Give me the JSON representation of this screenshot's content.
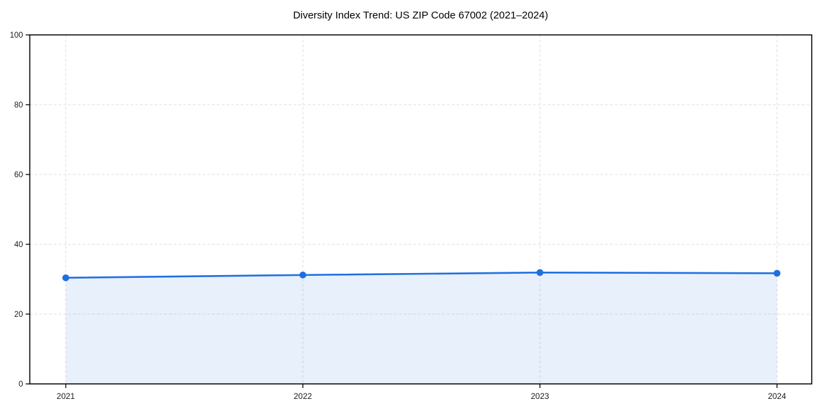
{
  "page": {
    "background": "#ffffff"
  },
  "chart_data": {
    "type": "area",
    "title": "Diversity Index Trend: US ZIP Code 67002 (2021–2024)",
    "x": [
      "2021",
      "2022",
      "2023",
      "2024"
    ],
    "series": [
      {
        "name": "Diversity Index",
        "values": [
          30.4,
          31.2,
          31.9,
          31.7
        ]
      }
    ],
    "xlabel": "",
    "ylabel": "",
    "ylim": [
      0,
      100
    ],
    "yticks": [
      0,
      20,
      40,
      60,
      80,
      100
    ],
    "grid": "dashed, both axes",
    "legend_position": "none",
    "colors": {
      "line": "#1f6fe0",
      "marker": "#1f6fe0",
      "area_fill": "rgba(31,111,224,0.10)",
      "grid": "#dedede",
      "axis": "#000000",
      "text": "#1a1a1a"
    }
  }
}
